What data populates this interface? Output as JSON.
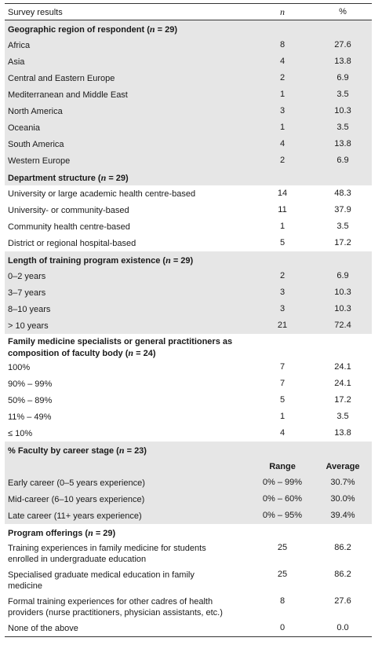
{
  "header": {
    "label": "Survey results",
    "n": "n",
    "pct": "%"
  },
  "sections": [
    {
      "title_pre": "Geographic region of respondent (",
      "title_n": "n",
      "title_post": " = 29)",
      "rows": [
        {
          "label": "Africa",
          "n": "8",
          "p": "27.6"
        },
        {
          "label": "Asia",
          "n": "4",
          "p": "13.8"
        },
        {
          "label": "Central and Eastern Europe",
          "n": "2",
          "p": "6.9"
        },
        {
          "label": "Mediterranean and Middle East",
          "n": "1",
          "p": "3.5"
        },
        {
          "label": "North America",
          "n": "3",
          "p": "10.3"
        },
        {
          "label": "Oceania",
          "n": "1",
          "p": "3.5"
        },
        {
          "label": "South America",
          "n": "4",
          "p": "13.8"
        },
        {
          "label": "Western Europe",
          "n": "2",
          "p": "6.9"
        }
      ]
    },
    {
      "title_pre": "Department structure (",
      "title_n": "n",
      "title_post": " = 29)",
      "rows": [
        {
          "label": "University or large academic health centre-based",
          "n": "14",
          "p": "48.3"
        },
        {
          "label": "University- or community-based",
          "n": "11",
          "p": "37.9"
        },
        {
          "label": "Community health centre-based",
          "n": "1",
          "p": "3.5"
        },
        {
          "label": "District or regional hospital-based",
          "n": "5",
          "p": "17.2"
        }
      ]
    },
    {
      "title_pre": "Length of training program existence (",
      "title_n": "n",
      "title_post": " = 29)",
      "rows": [
        {
          "label": "0–2 years",
          "n": "2",
          "p": "6.9"
        },
        {
          "label": "3–7 years",
          "n": "3",
          "p": "10.3"
        },
        {
          "label": "8–10 years",
          "n": "3",
          "p": "10.3"
        },
        {
          "label": "> 10 years",
          "n": "21",
          "p": "72.4"
        }
      ]
    },
    {
      "title_line1": "Family medicine specialists or general practitioners as",
      "title_pre": "composition of faculty body (",
      "title_n": "n",
      "title_post": " = 24)",
      "rows": [
        {
          "label": "100%",
          "n": "7",
          "p": "24.1"
        },
        {
          "label": "90% – 99%",
          "n": "7",
          "p": "24.1"
        },
        {
          "label": "50% – 89%",
          "n": "5",
          "p": "17.2"
        },
        {
          "label": "11% – 49%",
          "n": "1",
          "p": "3.5"
        },
        {
          "label": "≤ 10%",
          "n": "4",
          "p": "13.8"
        }
      ]
    },
    {
      "title_pre": "% Faculty by career stage (",
      "title_n": "n",
      "title_post": " = 23)",
      "subheader": {
        "range": "Range",
        "average": "Average"
      },
      "rows": [
        {
          "label": "Early career (0–5 years experience)",
          "n": "0% – 99%",
          "p": "30.7%"
        },
        {
          "label": "Mid-career (6–10 years experience)",
          "n": "0% – 60%",
          "p": "30.0%"
        },
        {
          "label": "Late career (11+ years experience)",
          "n": "0% – 95%",
          "p": "39.4%"
        }
      ]
    },
    {
      "title_pre": "Program offerings (",
      "title_n": "n",
      "title_post": " = 29)",
      "rows": [
        {
          "label1": "Training experiences in family medicine for students",
          "label2": "enrolled in undergraduate education",
          "n": "25",
          "p": "86.2"
        },
        {
          "label1": "Specialised graduate medical education in family",
          "label2": "medicine",
          "n": "25",
          "p": "86.2"
        },
        {
          "label1": "Formal training experiences for other cadres of health",
          "label2": "providers (nurse practitioners, physician assistants, etc.)",
          "n": "8",
          "p": "27.6"
        },
        {
          "label": "None of the above",
          "n": "0",
          "p": "0.0"
        }
      ]
    }
  ]
}
